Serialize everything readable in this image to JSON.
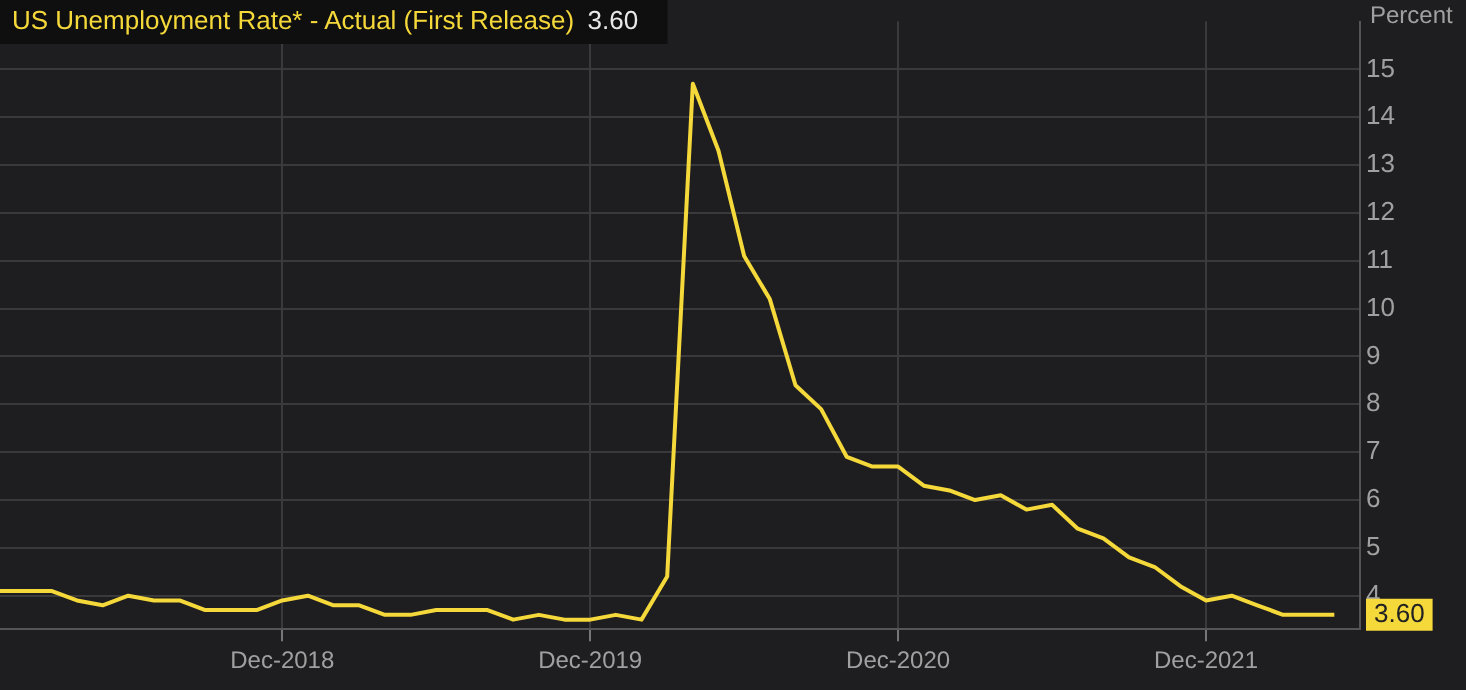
{
  "chart_data": {
    "type": "line",
    "title": "US Unemployment Rate* - Actual (First Release)",
    "ylabel": "Percent",
    "x": [
      "2018-01",
      "2018-02",
      "2018-03",
      "2018-04",
      "2018-05",
      "2018-06",
      "2018-07",
      "2018-08",
      "2018-09",
      "2018-10",
      "2018-11",
      "2018-12",
      "2019-01",
      "2019-02",
      "2019-03",
      "2019-04",
      "2019-05",
      "2019-06",
      "2019-07",
      "2019-08",
      "2019-09",
      "2019-10",
      "2019-11",
      "2019-12",
      "2020-01",
      "2020-02",
      "2020-03",
      "2020-04",
      "2020-05",
      "2020-06",
      "2020-07",
      "2020-08",
      "2020-09",
      "2020-10",
      "2020-11",
      "2020-12",
      "2021-01",
      "2021-02",
      "2021-03",
      "2021-04",
      "2021-05",
      "2021-06",
      "2021-07",
      "2021-08",
      "2021-09",
      "2021-10",
      "2021-11",
      "2021-12",
      "2022-01",
      "2022-02",
      "2022-03",
      "2022-04",
      "2022-05"
    ],
    "series": [
      {
        "color": "#f5d83a",
        "values": [
          4.1,
          4.1,
          4.1,
          3.9,
          3.8,
          4.0,
          3.9,
          3.9,
          3.7,
          3.7,
          3.7,
          3.9,
          4.0,
          3.8,
          3.8,
          3.6,
          3.6,
          3.7,
          3.7,
          3.7,
          3.5,
          3.6,
          3.5,
          3.5,
          3.6,
          3.5,
          4.4,
          14.7,
          13.3,
          11.1,
          10.2,
          8.4,
          7.9,
          6.9,
          6.7,
          6.7,
          6.3,
          6.2,
          6.0,
          6.1,
          5.8,
          5.9,
          5.4,
          5.2,
          4.8,
          4.6,
          4.2,
          3.9,
          4.0,
          3.8,
          3.6,
          3.6,
          3.6
        ]
      }
    ],
    "xlim": [
      "2018-01",
      "2022-06"
    ],
    "xticks": [
      {
        "value": "2018-12",
        "label": "Dec-2018"
      },
      {
        "value": "2019-12",
        "label": "Dec-2019"
      },
      {
        "value": "2020-12",
        "label": "Dec-2020"
      },
      {
        "value": "2021-12",
        "label": "Dec-2021"
      }
    ],
    "ylim": [
      3.3,
      16
    ],
    "yticks": [
      4,
      5,
      6,
      7,
      8,
      9,
      10,
      11,
      12,
      13,
      14,
      15
    ],
    "grid": true,
    "legend": false,
    "marker": "none",
    "line_style": "solid",
    "annotations": [
      "3.60",
      {
        "text": "3.60",
        "x": "2022-05",
        "y": 3.6
      }
    ]
  }
}
